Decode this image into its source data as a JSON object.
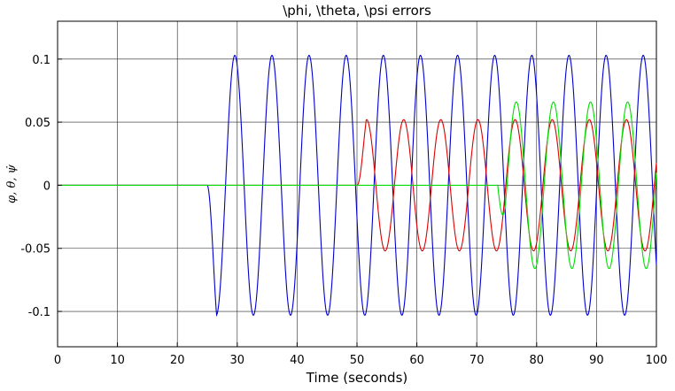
{
  "chart_data": {
    "type": "line",
    "title": "\\phi, \\theta, \\psi errors",
    "xlabel": "Time (seconds)",
    "ylabel": "φ, θ, ψ̇",
    "xlim": [
      0,
      100
    ],
    "ylim": [
      -0.128,
      0.13
    ],
    "xticks": [
      0,
      10,
      20,
      30,
      40,
      50,
      60,
      70,
      80,
      90,
      100
    ],
    "xtick_labels": [
      "0",
      "10",
      "20",
      "30",
      "40",
      "50",
      "60",
      "70",
      "80",
      "90",
      "100"
    ],
    "yticks": [
      0.1,
      0.05,
      0,
      -0.05,
      -0.1
    ],
    "ytick_labels": [
      "0.1",
      "0.05",
      "0",
      "-0.05",
      "-0.1"
    ],
    "grid": true,
    "series": [
      {
        "color": "#0000cc",
        "segments": [
          {
            "x": [
              0,
              25
            ],
            "y": [
              0,
              0
            ]
          },
          {
            "x": [
              25,
              100
            ],
            "y_peaks": [
              -0.103,
              0.103
            ],
            "period_seconds": 6.2,
            "first_trough_x": 26.5,
            "first_peak_x": 29.6
          }
        ]
      },
      {
        "color": "#dd0000",
        "segments": [
          {
            "x": [
              0,
              50
            ],
            "y": [
              0,
              0
            ]
          },
          {
            "x": [
              50,
              100
            ],
            "y_peaks": [
              -0.052,
              0.052
            ],
            "period_seconds": 6.2,
            "first_peak_x": 51.6,
            "first_trough_x": 54.7
          }
        ]
      },
      {
        "color": "#00dd00",
        "segments": [
          {
            "x": [
              0,
              73.5
            ],
            "y": [
              0,
              0
            ]
          },
          {
            "x": [
              73.5,
              100
            ],
            "y_peaks": [
              -0.066,
              0.066
            ],
            "period_seconds": 6.2,
            "first_peak_x": 76.6,
            "first_trough_x": 79.7
          }
        ]
      }
    ]
  }
}
